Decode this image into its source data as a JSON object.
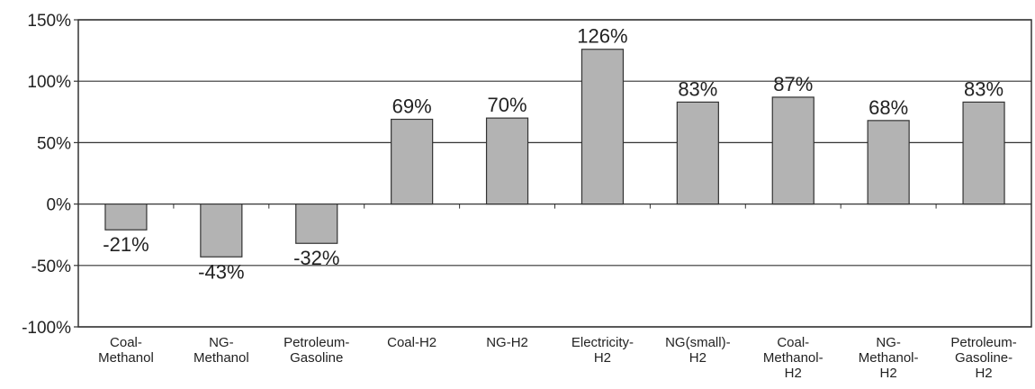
{
  "chart_data": {
    "type": "bar",
    "title": "",
    "xlabel": "",
    "ylabel": "",
    "ylim": [
      -100,
      150
    ],
    "yticks": [
      150,
      100,
      50,
      0,
      -50,
      -100
    ],
    "ytick_labels": [
      "150%",
      "100%",
      "50%",
      "0%",
      "-50%",
      "-100%"
    ],
    "grid": true,
    "legend": "none",
    "bar_color": "#b3b3b3",
    "categories": [
      [
        "Coal-",
        "Methanol"
      ],
      [
        "NG-",
        "Methanol"
      ],
      [
        "Petroleum-",
        "Gasoline"
      ],
      [
        "Coal-H2"
      ],
      [
        "NG-H2"
      ],
      [
        "Electricity-",
        "H2"
      ],
      [
        "NG(small)-",
        "H2"
      ],
      [
        "Coal-",
        "Methanol-",
        "H2"
      ],
      [
        "NG-",
        "Methanol-",
        "H2"
      ],
      [
        "Petroleum-",
        "Gasoline-",
        "H2"
      ]
    ],
    "values": [
      -21,
      -43,
      -32,
      69,
      70,
      126,
      83,
      87,
      68,
      83
    ],
    "data_labels": [
      "-21%",
      "-43%",
      "-32%",
      "69%",
      "70%",
      "126%",
      "83%",
      "87%",
      "68%",
      "83%"
    ]
  }
}
